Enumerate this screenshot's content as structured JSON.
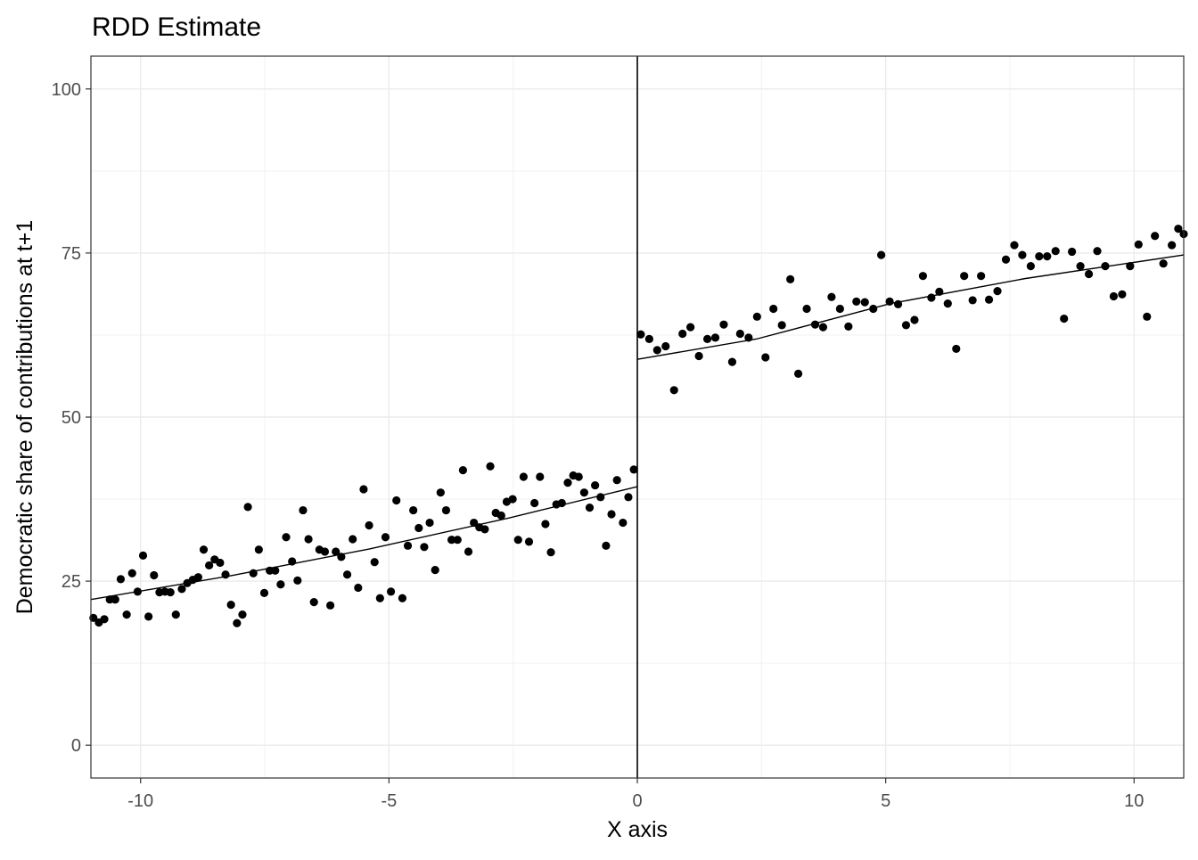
{
  "chart_data": {
    "type": "scatter",
    "title": "RDD Estimate",
    "xlabel": "X axis",
    "ylabel": "Democratic share of contributions at t+1",
    "xlim": [
      -11,
      11
    ],
    "ylim": [
      -5,
      105
    ],
    "xticks": [
      -10,
      -5,
      0,
      5,
      10
    ],
    "yticks": [
      0,
      25,
      50,
      75,
      100
    ],
    "xtick_labels": [
      "-10",
      "-5",
      "0",
      "5",
      "10"
    ],
    "ytick_labels": [
      "0",
      "25",
      "50",
      "75",
      "100"
    ],
    "grid": true,
    "cutoff": 0,
    "point_color": "#000000",
    "left": {
      "x": [
        -10.95,
        -10.84,
        -10.73,
        -10.62,
        -10.51,
        -10.4,
        -10.28,
        -10.17,
        -10.06,
        -9.95,
        -9.84,
        -9.73,
        -9.62,
        -9.51,
        -9.4,
        -9.29,
        -9.17,
        -9.06,
        -8.95,
        -8.84,
        -8.73,
        -8.62,
        -8.51,
        -8.4,
        -8.29,
        -8.18,
        -8.06,
        -7.95,
        -7.84,
        -7.73,
        -7.62,
        -7.51,
        -7.4,
        -7.29,
        -7.18,
        -7.07,
        -6.95,
        -6.84,
        -6.73,
        -6.62,
        -6.51,
        -6.4,
        -6.29,
        -6.18,
        -6.07,
        -5.96,
        -5.84,
        -5.73,
        -5.62,
        -5.51,
        -5.4,
        -5.29,
        -5.18,
        -5.07,
        -4.96,
        -4.85,
        -4.73,
        -4.62,
        -4.51,
        -4.4,
        -4.29,
        -4.18,
        -4.07,
        -3.96,
        -3.85,
        -3.74,
        -3.62,
        -3.51,
        -3.4,
        -3.29,
        -3.18,
        -3.07,
        -2.96,
        -2.85,
        -2.74,
        -2.63,
        -2.51,
        -2.4,
        -2.29,
        -2.18,
        -2.07,
        -1.96,
        -1.85,
        -1.74,
        -1.63,
        -1.52,
        -1.4,
        -1.29,
        -1.18,
        -1.07,
        -0.96,
        -0.85,
        -0.74,
        -0.63,
        -0.52,
        -0.41,
        -0.29,
        -0.18,
        -0.07
      ],
      "y": [
        19.4,
        18.7,
        19.2,
        22.2,
        22.2,
        25.3,
        19.9,
        26.2,
        23.4,
        28.9,
        19.6,
        25.9,
        23.3,
        23.4,
        23.3,
        19.9,
        23.8,
        24.7,
        25.2,
        25.6,
        29.8,
        27.4,
        28.3,
        27.8,
        26.0,
        21.4,
        18.6,
        19.9,
        36.3,
        26.2,
        29.8,
        23.2,
        26.6,
        26.6,
        24.5,
        31.7,
        28.0,
        25.1,
        35.8,
        31.4,
        21.8,
        29.8,
        29.5,
        21.3,
        29.5,
        28.7,
        26.0,
        31.4,
        24.0,
        39.0,
        33.5,
        27.9,
        22.4,
        31.7,
        23.4,
        37.3,
        22.4,
        30.4,
        35.8,
        33.1,
        30.2,
        33.9,
        26.7,
        38.5,
        35.8,
        31.3,
        31.3,
        41.9,
        29.5,
        33.9,
        33.2,
        32.9,
        42.5,
        35.4,
        35.0,
        37.1,
        37.5,
        31.3,
        40.9,
        31.0,
        36.9,
        40.9,
        33.7,
        29.4,
        36.7,
        36.9,
        40.0,
        41.1,
        40.9,
        38.5,
        36.2,
        39.6,
        37.8,
        30.4,
        35.2,
        40.4,
        33.9,
        37.8,
        42.0
      ],
      "fit_x": [
        -11,
        -8.2,
        -5.4,
        -2.6,
        0
      ],
      "fit_y": [
        22.2,
        25.8,
        29.9,
        34.6,
        39.4
      ]
    },
    "right": {
      "x": [
        0.07,
        0.24,
        0.4,
        0.57,
        0.74,
        0.91,
        1.07,
        1.24,
        1.41,
        1.57,
        1.74,
        1.91,
        2.07,
        2.24,
        2.41,
        2.58,
        2.74,
        2.91,
        3.08,
        3.24,
        3.41,
        3.58,
        3.74,
        3.91,
        4.08,
        4.25,
        4.41,
        4.58,
        4.75,
        4.91,
        5.08,
        5.25,
        5.41,
        5.58,
        5.75,
        5.92,
        6.08,
        6.25,
        6.42,
        6.58,
        6.75,
        6.92,
        7.08,
        7.25,
        7.42,
        7.59,
        7.75,
        7.92,
        8.09,
        8.25,
        8.42,
        8.59,
        8.75,
        8.92,
        9.09,
        9.26,
        9.42,
        9.59,
        9.76,
        9.92,
        10.09,
        10.26,
        10.42,
        10.59,
        10.76,
        10.89,
        11.0
      ],
      "y": [
        62.6,
        61.9,
        60.2,
        60.8,
        54.1,
        62.7,
        63.7,
        59.3,
        61.9,
        62.1,
        64.1,
        58.4,
        62.7,
        62.1,
        65.3,
        59.1,
        66.5,
        64.0,
        71.0,
        56.6,
        66.5,
        64.1,
        63.7,
        68.3,
        66.5,
        63.8,
        67.6,
        67.5,
        66.5,
        74.7,
        67.6,
        67.2,
        64.0,
        64.8,
        71.5,
        68.2,
        69.1,
        67.3,
        60.4,
        71.5,
        67.8,
        71.5,
        67.9,
        69.2,
        74.0,
        76.2,
        74.7,
        73.0,
        74.5,
        74.5,
        75.3,
        65.0,
        75.2,
        73.0,
        71.8,
        75.3,
        73.0,
        68.4,
        68.7,
        73.0,
        76.3,
        65.3,
        77.6,
        73.4,
        76.2,
        78.7,
        77.9
      ],
      "fit_x": [
        0,
        2.4,
        5.1,
        7.8,
        11
      ],
      "fit_y": [
        58.8,
        61.9,
        67.3,
        71.1,
        74.7
      ]
    }
  }
}
